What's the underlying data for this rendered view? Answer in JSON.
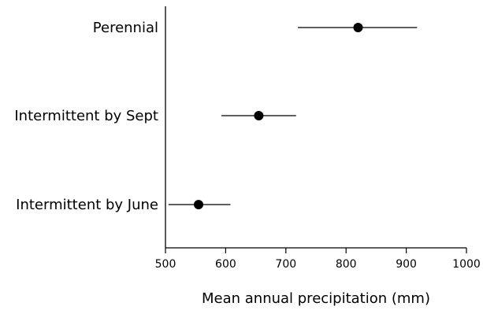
{
  "chart_data": {
    "type": "scatter",
    "subtype": "dot-with-error-bars",
    "title": "",
    "xlabel": "Mean annual precipitation (mm)",
    "ylabel": "",
    "xlim": [
      500,
      1000
    ],
    "xticks": [
      500,
      600,
      700,
      800,
      900,
      1000
    ],
    "grid": false,
    "categories": [
      "Perennial",
      "Intermittent by Sept",
      "Intermittent by June"
    ],
    "series": [
      {
        "values": [
          820,
          655,
          555
        ],
        "error_low": [
          720,
          593,
          505
        ],
        "error_high": [
          918,
          717,
          608
        ]
      }
    ],
    "marker_color": "#000000"
  }
}
